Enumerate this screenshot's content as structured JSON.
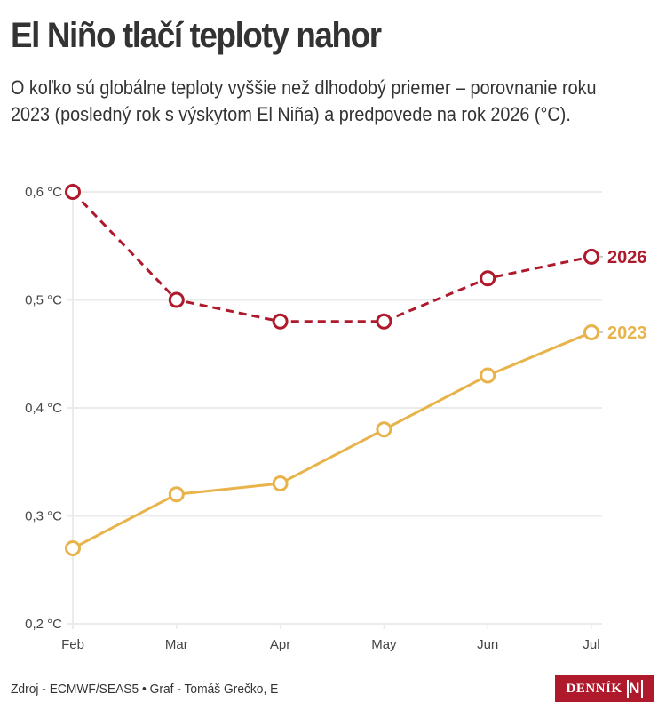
{
  "header": {
    "title": "El Niño tlačí teploty nahor",
    "subtitle": "O koľko sú globálne teploty vyššie než dlhodobý priemer – porovnanie roku 2023 (posledný rok s výskytom El Niña) a predpovede na rok 2026 (°C)."
  },
  "footer": {
    "source": "Zdroj - ECMWF/SEAS5 • Graf - Tomáš Grečko, E",
    "logo_text": "DENNÍK",
    "logo_mark": "N",
    "logo_color": "#ae1a2c"
  },
  "chart_data": {
    "type": "line",
    "title": "El Niño tlačí teploty nahor",
    "xlabel": "",
    "ylabel": "",
    "categories": [
      "Feb",
      "Mar",
      "Apr",
      "May",
      "Jun",
      "Jul"
    ],
    "y_ticks": [
      0.2,
      0.3,
      0.4,
      0.5,
      0.6
    ],
    "y_tick_labels": [
      "0,2 °C",
      "0,3 °C",
      "0,4 °C",
      "0,5 °C",
      "0,6 °C"
    ],
    "ylim": [
      0.2,
      0.6
    ],
    "grid": true,
    "legend": "direct labels at line ends (right)",
    "series": [
      {
        "name": "2026",
        "values": [
          0.6,
          0.5,
          0.48,
          0.48,
          0.52,
          0.54
        ],
        "color": "#ae1a2c",
        "style": "dashed"
      },
      {
        "name": "2023",
        "values": [
          0.27,
          0.32,
          0.33,
          0.38,
          0.43,
          0.47
        ],
        "color": "#e8b34a",
        "style": "solid"
      }
    ]
  }
}
